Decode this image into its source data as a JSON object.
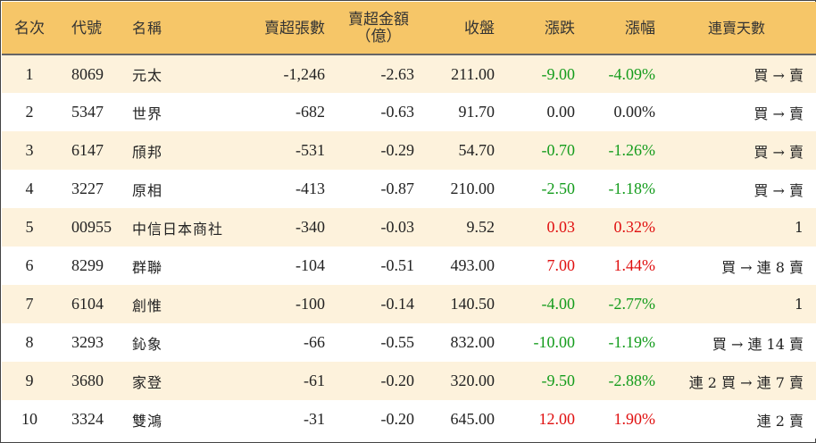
{
  "headers": {
    "rank": "名次",
    "code": "代號",
    "name": "名稱",
    "net_sell_lots": "賣超張數",
    "net_sell_amount_line1": "賣超金額",
    "net_sell_amount_line2": "（億）",
    "close": "收盤",
    "change": "漲跌",
    "change_pct": "漲幅",
    "streak": "連賣天數"
  },
  "colors": {
    "header_bg": "#f6c668",
    "stripe_bg": "#fdf2dc",
    "down": "#149c1c",
    "up": "#e01010"
  },
  "rows": [
    {
      "rank": "1",
      "code": "8069",
      "name": "元太",
      "lots": "-1,246",
      "amount": "-2.63",
      "close": "211.00",
      "change": "-9.00",
      "pct": "-4.09%",
      "trend": "down",
      "streak": "買 → 賣"
    },
    {
      "rank": "2",
      "code": "5347",
      "name": "世界",
      "lots": "-682",
      "amount": "-0.63",
      "close": "91.70",
      "change": "0.00",
      "pct": "0.00%",
      "trend": "flat",
      "streak": "買 → 賣"
    },
    {
      "rank": "3",
      "code": "6147",
      "name": "頎邦",
      "lots": "-531",
      "amount": "-0.29",
      "close": "54.70",
      "change": "-0.70",
      "pct": "-1.26%",
      "trend": "down",
      "streak": "買 → 賣"
    },
    {
      "rank": "4",
      "code": "3227",
      "name": "原相",
      "lots": "-413",
      "amount": "-0.87",
      "close": "210.00",
      "change": "-2.50",
      "pct": "-1.18%",
      "trend": "down",
      "streak": "買 → 賣"
    },
    {
      "rank": "5",
      "code": "00955",
      "name": "中信日本商社",
      "lots": "-340",
      "amount": "-0.03",
      "close": "9.52",
      "change": "0.03",
      "pct": "0.32%",
      "trend": "up",
      "streak": "1"
    },
    {
      "rank": "6",
      "code": "8299",
      "name": "群聯",
      "lots": "-104",
      "amount": "-0.51",
      "close": "493.00",
      "change": "7.00",
      "pct": "1.44%",
      "trend": "up",
      "streak": "買 → 連 8 賣"
    },
    {
      "rank": "7",
      "code": "6104",
      "name": "創惟",
      "lots": "-100",
      "amount": "-0.14",
      "close": "140.50",
      "change": "-4.00",
      "pct": "-2.77%",
      "trend": "down",
      "streak": "1"
    },
    {
      "rank": "8",
      "code": "3293",
      "name": "鈊象",
      "lots": "-66",
      "amount": "-0.55",
      "close": "832.00",
      "change": "-10.00",
      "pct": "-1.19%",
      "trend": "down",
      "streak": "買 → 連 14 賣"
    },
    {
      "rank": "9",
      "code": "3680",
      "name": "家登",
      "lots": "-61",
      "amount": "-0.20",
      "close": "320.00",
      "change": "-9.50",
      "pct": "-2.88%",
      "trend": "down",
      "streak": "連 2 買 → 連 7 賣"
    },
    {
      "rank": "10",
      "code": "3324",
      "name": "雙鴻",
      "lots": "-31",
      "amount": "-0.20",
      "close": "645.00",
      "change": "12.00",
      "pct": "1.90%",
      "trend": "up",
      "streak": "連 2 賣"
    }
  ]
}
